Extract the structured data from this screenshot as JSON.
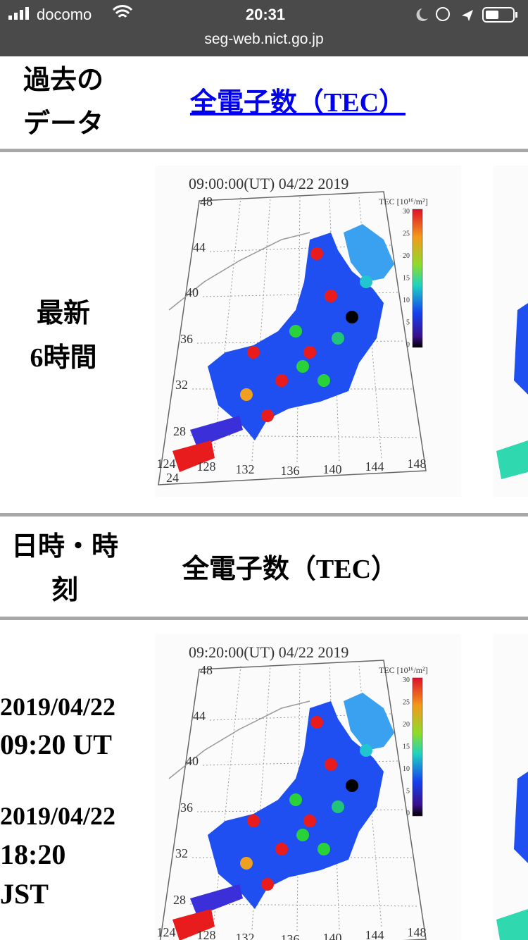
{
  "status_bar": {
    "carrier": "docomo",
    "time": "20:31",
    "url": "seg-web.nict.go.jp"
  },
  "rows": [
    {
      "label": [
        "過去の",
        "データ"
      ],
      "link": "全電子数（TEC）"
    },
    {
      "label": [
        "最新",
        "6時間"
      ]
    }
  ],
  "table_header": {
    "label": [
      "日時・時",
      "刻"
    ],
    "column": "全電子数（TEC）"
  },
  "entry": {
    "label": [
      "2019/04/22",
      "09:20 UT",
      "2019/04/22",
      "18:20",
      "JST"
    ]
  },
  "maps": [
    {
      "title": "09:00:00(UT)  04/22 2019"
    },
    {
      "title": "09:20:00(UT)  04/22 2019"
    }
  ],
  "map_axes": {
    "colorbar_label": "TEC [10¹⁶/m²]",
    "colorbar_ticks": [
      30,
      25,
      20,
      15,
      10,
      5,
      0
    ],
    "lat_labels": [
      48,
      44,
      40,
      36,
      32,
      28,
      24
    ],
    "lon_labels": [
      124,
      128,
      132,
      136,
      140,
      144,
      148
    ]
  }
}
